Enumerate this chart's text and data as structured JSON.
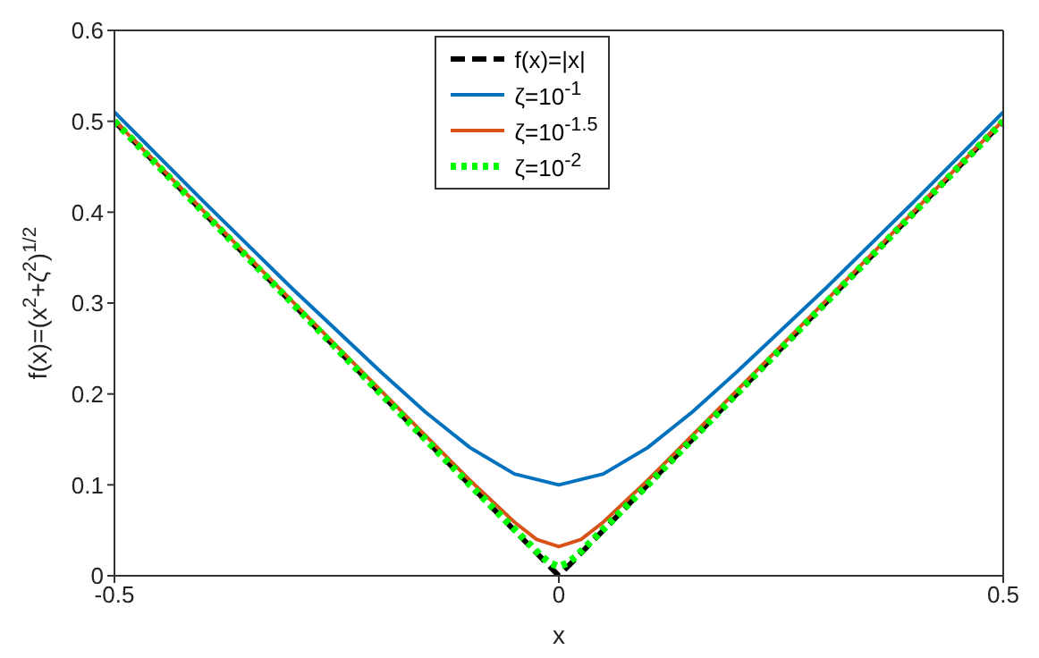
{
  "chart_data": {
    "type": "line",
    "xlabel": "x",
    "ylabel": "f(x)=(x$^{2}$+ζ$^{2}$)$^{1/2}$",
    "xlim": [
      -0.5,
      0.5
    ],
    "xticks": [
      -0.5,
      0,
      0.5
    ],
    "ylim": [
      0,
      0.6
    ],
    "yticks": [
      0,
      0.1,
      0.2,
      0.3,
      0.4,
      0.5,
      0.6
    ],
    "legend": "top",
    "marker": "none",
    "series": [
      {
        "name": "f(x)=|x|",
        "color": "#000000",
        "line_style": "dashed",
        "x": [
          -0.5,
          0,
          0.5
        ],
        "values": [
          0.5,
          0,
          0.5
        ]
      },
      {
        "name": "ζ=10$^{-1}$",
        "color": "#0072bd",
        "line_style": "solid",
        "x": [
          -0.5,
          -0.4,
          -0.3,
          -0.2,
          -0.15,
          -0.1,
          -0.05,
          0,
          0.05,
          0.1,
          0.15,
          0.2,
          0.3,
          0.4,
          0.5
        ],
        "values": [
          0.51,
          0.412,
          0.316,
          0.224,
          0.18,
          0.141,
          0.112,
          0.1,
          0.112,
          0.141,
          0.18,
          0.224,
          0.316,
          0.412,
          0.51
        ]
      },
      {
        "name": "ζ=10$^{-1.5}$",
        "color": "#d95319",
        "line_style": "solid",
        "x": [
          -0.5,
          -0.3,
          -0.1,
          -0.05,
          -0.025,
          0,
          0.025,
          0.05,
          0.1,
          0.3,
          0.5
        ],
        "values": [
          0.501,
          0.302,
          0.105,
          0.059,
          0.04,
          0.032,
          0.04,
          0.059,
          0.105,
          0.302,
          0.501
        ]
      },
      {
        "name": "ζ=10$^{-2}$",
        "color": "#00ff00",
        "line_style": "dotted",
        "x": [
          -0.5,
          -0.1,
          -0.02,
          -0.01,
          0,
          0.01,
          0.02,
          0.1,
          0.5
        ],
        "values": [
          0.5,
          0.1,
          0.022,
          0.014,
          0.01,
          0.014,
          0.022,
          0.1,
          0.5
        ]
      }
    ]
  }
}
